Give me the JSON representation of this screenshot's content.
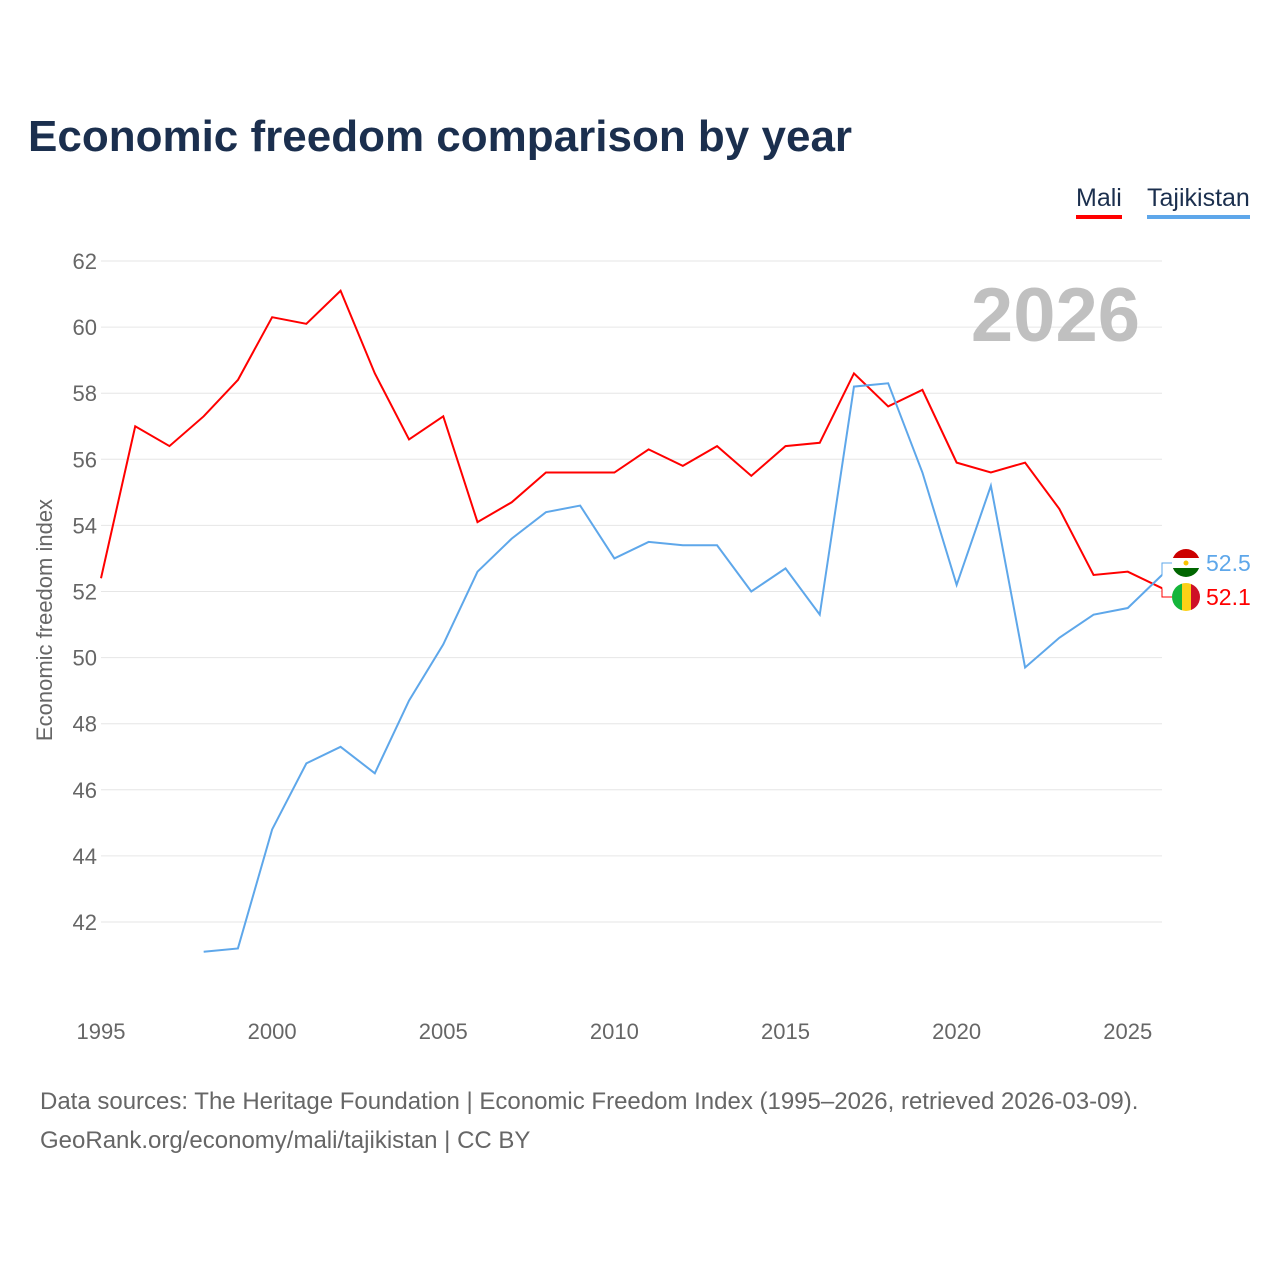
{
  "chart_data": {
    "type": "line",
    "title": "Economic freedom comparison by year",
    "xlabel": "",
    "ylabel": "Economic freedom index",
    "xlim": [
      1995,
      2026
    ],
    "ylim": [
      39.6,
      62
    ],
    "x_ticks": [
      "1995",
      "2000",
      "2005",
      "2010",
      "2015",
      "2020",
      "2025"
    ],
    "y_ticks": [
      "42",
      "44",
      "46",
      "48",
      "50",
      "52",
      "54",
      "56",
      "58",
      "60",
      "62"
    ],
    "grid": true,
    "legend_placement": "top-right",
    "year_label": "2026",
    "series": [
      {
        "name": "Mali",
        "color": "#ff0000",
        "end_label": "52.1",
        "x": [
          1995,
          1996,
          1997,
          1998,
          1999,
          2000,
          2001,
          2002,
          2003,
          2004,
          2005,
          2006,
          2007,
          2008,
          2009,
          2010,
          2011,
          2012,
          2013,
          2014,
          2015,
          2016,
          2017,
          2018,
          2019,
          2020,
          2021,
          2022,
          2023,
          2024,
          2025,
          2026
        ],
        "values": [
          52.4,
          57.0,
          56.4,
          57.3,
          58.4,
          60.3,
          60.1,
          61.1,
          58.6,
          56.6,
          57.3,
          54.1,
          54.7,
          55.6,
          55.6,
          55.6,
          56.3,
          55.8,
          56.4,
          55.5,
          56.4,
          56.5,
          58.6,
          57.6,
          58.1,
          55.9,
          55.6,
          55.9,
          54.5,
          52.5,
          52.6,
          52.1
        ]
      },
      {
        "name": "Tajikistan",
        "color": "#5ea7ea",
        "end_label": "52.5",
        "x": [
          1998,
          1999,
          2000,
          2001,
          2002,
          2003,
          2004,
          2005,
          2006,
          2007,
          2008,
          2009,
          2010,
          2011,
          2012,
          2013,
          2014,
          2015,
          2016,
          2017,
          2018,
          2019,
          2020,
          2021,
          2022,
          2023,
          2024,
          2025,
          2026
        ],
        "values": [
          41.1,
          41.2,
          44.8,
          46.8,
          47.3,
          46.5,
          48.7,
          50.4,
          52.6,
          53.6,
          54.4,
          54.6,
          53.0,
          53.5,
          53.4,
          53.4,
          52.0,
          52.7,
          51.3,
          58.2,
          58.3,
          55.6,
          52.2,
          55.2,
          49.7,
          50.6,
          51.3,
          51.5,
          52.5
        ]
      }
    ]
  },
  "footer": {
    "line1": "Data sources: The Heritage Foundation | Economic Freedom Index (1995–2026, retrieved 2026-03-09).",
    "line2": "GeoRank.org/economy/mali/tajikistan | CC BY"
  }
}
